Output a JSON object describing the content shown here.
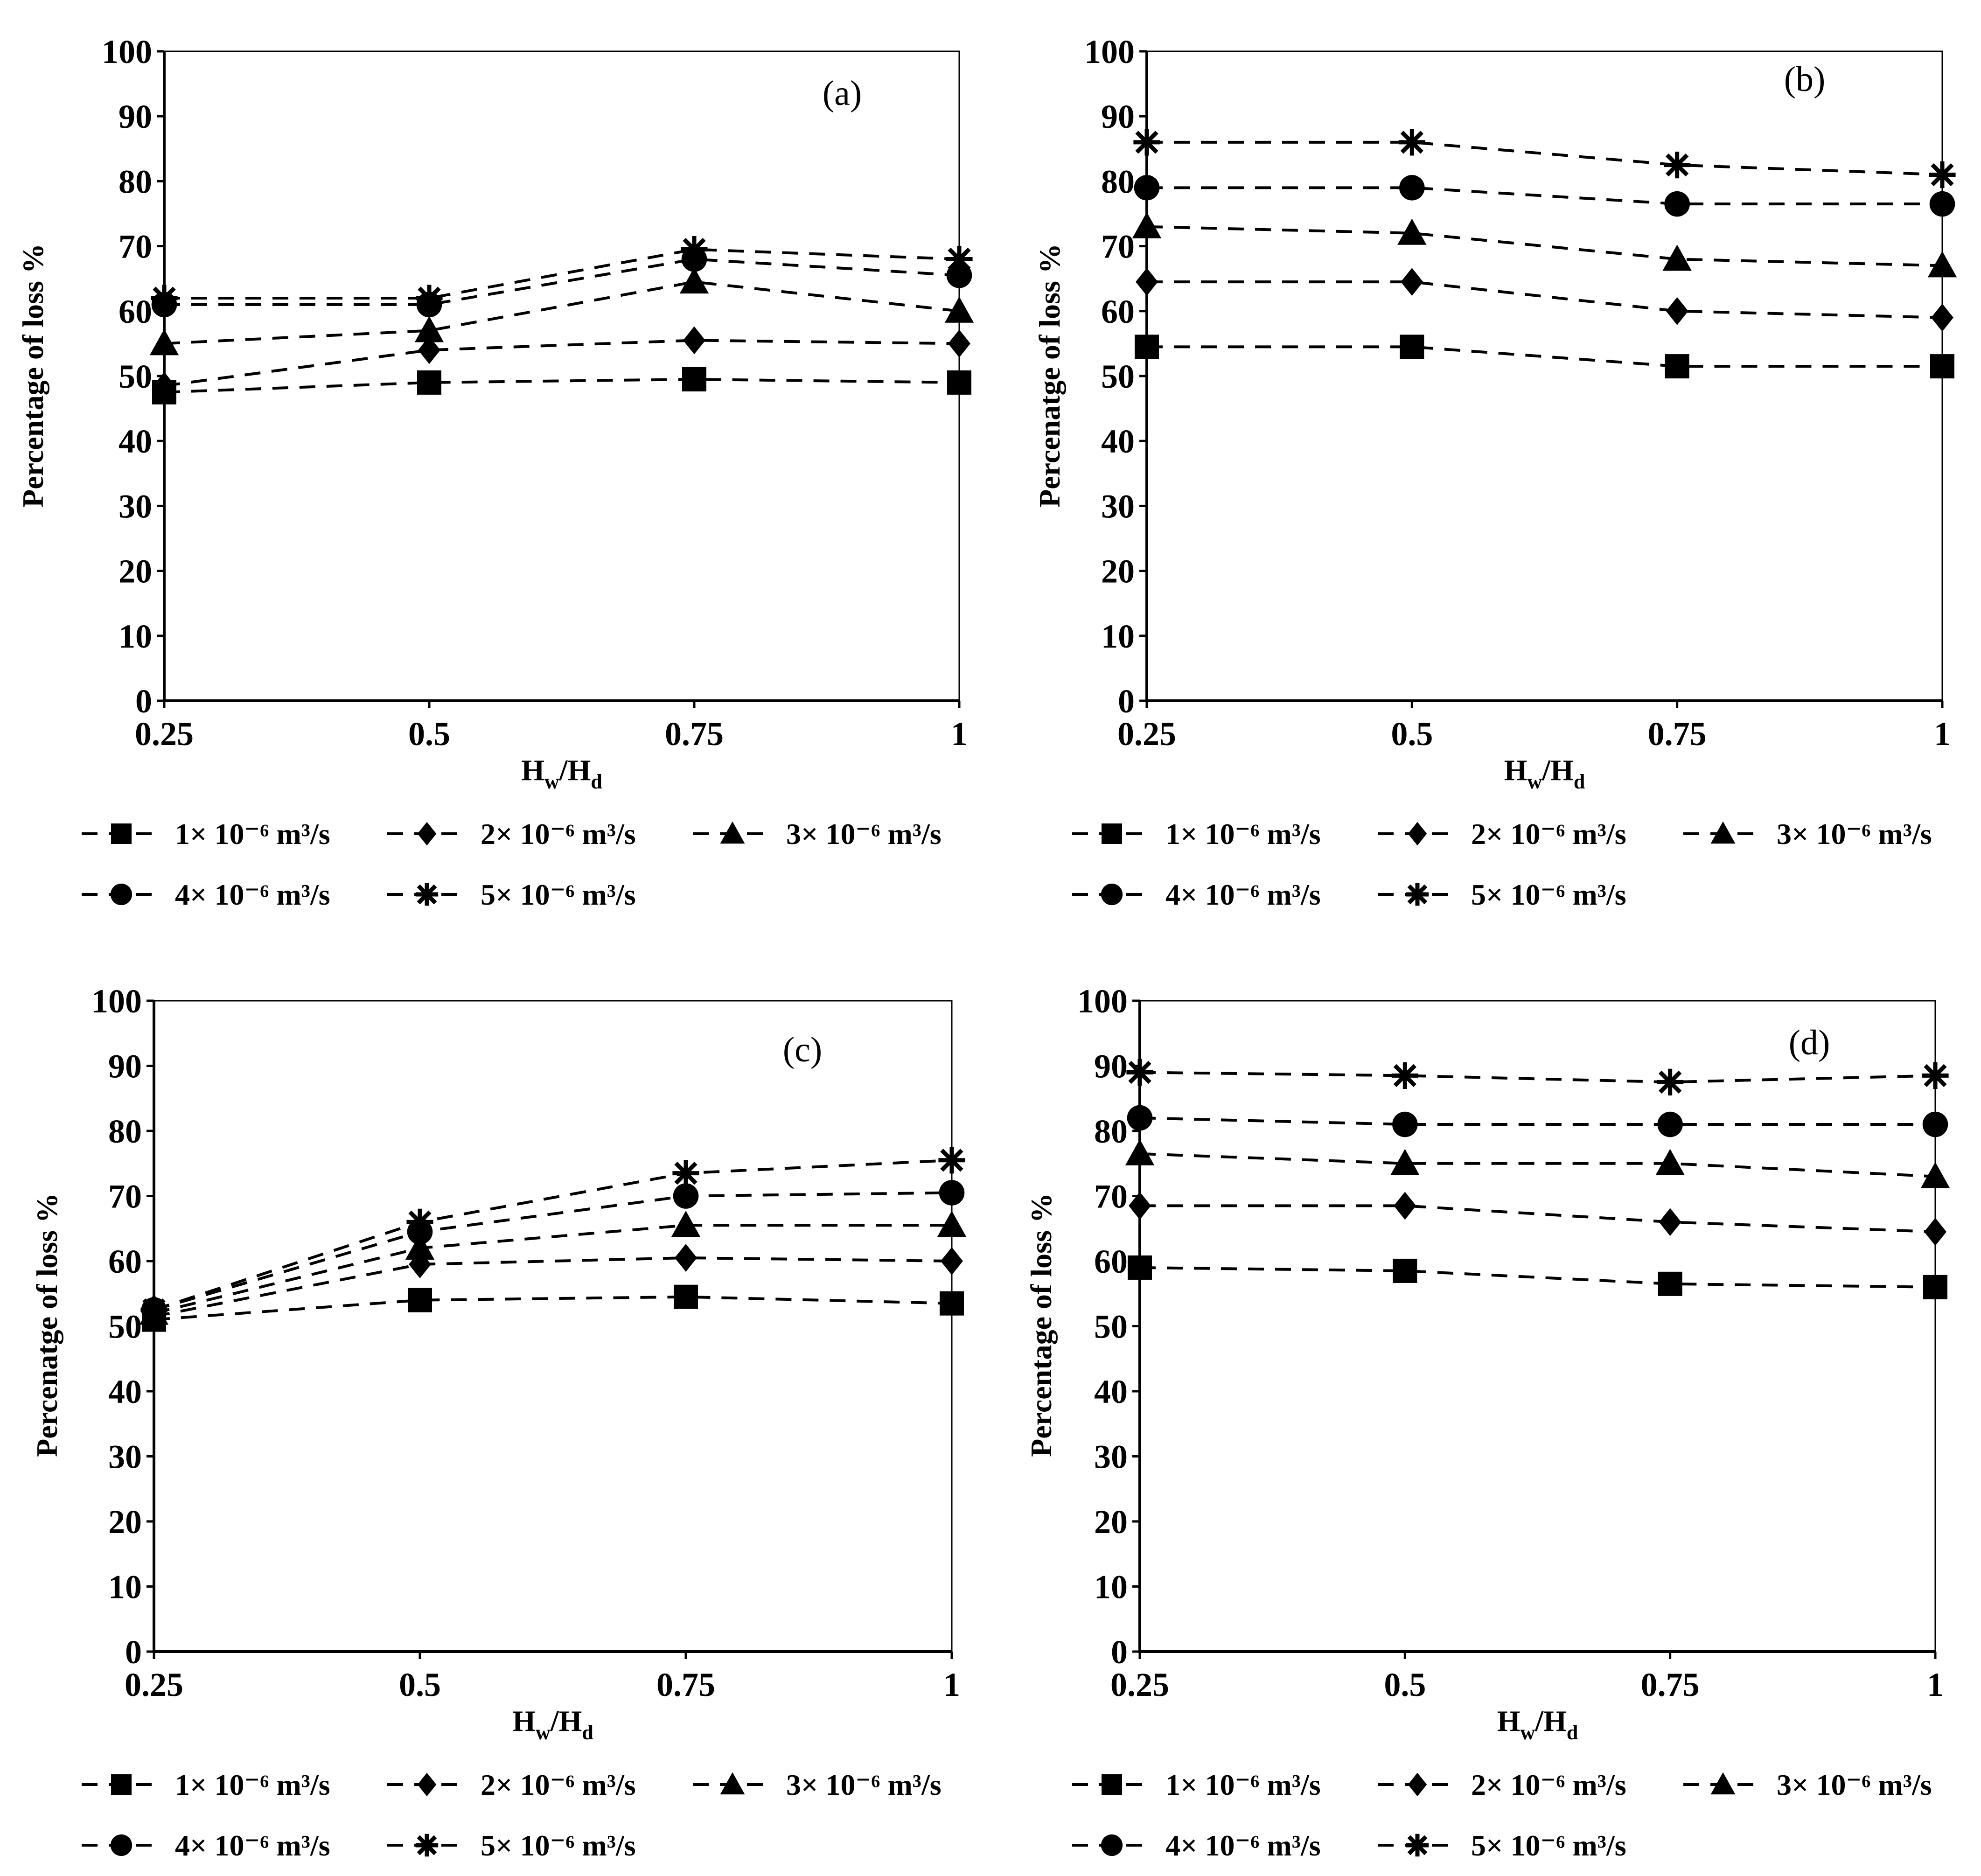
{
  "chart_data": [
    {
      "panel_label": "(a)",
      "type": "line",
      "xlabel": "Hw/Hd",
      "ylabel": "Percentage of loss %",
      "x": [
        0.25,
        0.5,
        0.75,
        1
      ],
      "x_tick_labels": [
        "0.25",
        "0.5",
        "0.75",
        "1"
      ],
      "ylim": [
        0,
        100
      ],
      "y_tick_labels": [
        "0",
        "10",
        "20",
        "30",
        "40",
        "50",
        "60",
        "70",
        "80",
        "90",
        "100"
      ],
      "series": [
        {
          "name": "1× 10⁻⁶ m³/s",
          "marker": "square",
          "values": [
            47.5,
            49,
            49.5,
            49
          ]
        },
        {
          "name": "2× 10⁻⁶ m³/s",
          "marker": "diamond",
          "values": [
            48.5,
            54,
            55.5,
            55
          ]
        },
        {
          "name": "3× 10⁻⁶ m³/s",
          "marker": "triangle",
          "values": [
            55,
            57,
            64.5,
            60
          ]
        },
        {
          "name": "4× 10⁻⁶ m³/s",
          "marker": "circle",
          "values": [
            61,
            61,
            68,
            65.5
          ]
        },
        {
          "name": "5× 10⁻⁶ m³/s",
          "marker": "asterisk",
          "values": [
            62,
            62,
            69.5,
            68
          ]
        }
      ]
    },
    {
      "panel_label": "(b)",
      "type": "line",
      "xlabel": "Hw/Hd",
      "ylabel": "Percenatge of loss %",
      "x": [
        0.25,
        0.5,
        0.75,
        1
      ],
      "x_tick_labels": [
        "0.25",
        "0.5",
        "0.75",
        "1"
      ],
      "ylim": [
        0,
        100
      ],
      "y_tick_labels": [
        "0",
        "10",
        "20",
        "30",
        "40",
        "50",
        "60",
        "70",
        "80",
        "90",
        "100"
      ],
      "series": [
        {
          "name": "1× 10⁻⁶ m³/s",
          "marker": "square",
          "values": [
            54.5,
            54.5,
            51.5,
            51.5
          ]
        },
        {
          "name": "2× 10⁻⁶ m³/s",
          "marker": "diamond",
          "values": [
            64.5,
            64.5,
            60,
            59
          ]
        },
        {
          "name": "3× 10⁻⁶ m³/s",
          "marker": "triangle",
          "values": [
            73,
            72,
            68,
            67
          ]
        },
        {
          "name": "4× 10⁻⁶ m³/s",
          "marker": "circle",
          "values": [
            79,
            79,
            76.5,
            76.5
          ]
        },
        {
          "name": "5× 10⁻⁶ m³/s",
          "marker": "asterisk",
          "values": [
            86,
            86,
            82.5,
            81
          ]
        }
      ]
    },
    {
      "panel_label": "(c)",
      "type": "line",
      "xlabel": "Hw/Hd",
      "ylabel": "Percenatge of loss %",
      "x": [
        0.25,
        0.5,
        0.75,
        1
      ],
      "x_tick_labels": [
        "0.25",
        "0.5",
        "0.75",
        "1"
      ],
      "ylim": [
        0,
        100
      ],
      "y_tick_labels": [
        "0",
        "10",
        "20",
        "30",
        "40",
        "50",
        "60",
        "70",
        "80",
        "90",
        "100"
      ],
      "series": [
        {
          "name": "1× 10⁻⁶ m³/s",
          "marker": "square",
          "values": [
            51,
            54,
            54.5,
            53.5
          ]
        },
        {
          "name": "2× 10⁻⁶ m³/s",
          "marker": "diamond",
          "values": [
            51.5,
            59.5,
            60.5,
            60
          ]
        },
        {
          "name": "3× 10⁻⁶ m³/s",
          "marker": "triangle",
          "values": [
            52,
            62,
            65.5,
            65.5
          ]
        },
        {
          "name": "4× 10⁻⁶ m³/s",
          "marker": "circle",
          "values": [
            52.5,
            64.5,
            70,
            70.5
          ]
        },
        {
          "name": "5× 10⁻⁶ m³/s",
          "marker": "asterisk",
          "values": [
            52.5,
            66,
            73.5,
            75.5
          ]
        }
      ]
    },
    {
      "panel_label": "(d)",
      "type": "line",
      "xlabel": "Hw/Hd",
      "ylabel": "Percentage of loss %",
      "x": [
        0.25,
        0.5,
        0.75,
        1
      ],
      "x_tick_labels": [
        "0.25",
        "0.5",
        "0.75",
        "1"
      ],
      "ylim": [
        0,
        100
      ],
      "y_tick_labels": [
        "0",
        "10",
        "20",
        "30",
        "40",
        "50",
        "60",
        "70",
        "80",
        "90",
        "100"
      ],
      "series": [
        {
          "name": "1× 10⁻⁶ m³/s",
          "marker": "square",
          "values": [
            59,
            58.5,
            56.5,
            56
          ]
        },
        {
          "name": "2× 10⁻⁶ m³/s",
          "marker": "diamond",
          "values": [
            68.5,
            68.5,
            66,
            64.5
          ]
        },
        {
          "name": "3× 10⁻⁶ m³/s",
          "marker": "triangle",
          "values": [
            76.5,
            75,
            75,
            73
          ]
        },
        {
          "name": "4× 10⁻⁶ m³/s",
          "marker": "circle",
          "values": [
            82,
            81,
            81,
            81
          ]
        },
        {
          "name": "5× 10⁻⁶ m³/s",
          "marker": "asterisk",
          "values": [
            89,
            88.5,
            87.5,
            88.5
          ]
        }
      ]
    }
  ]
}
